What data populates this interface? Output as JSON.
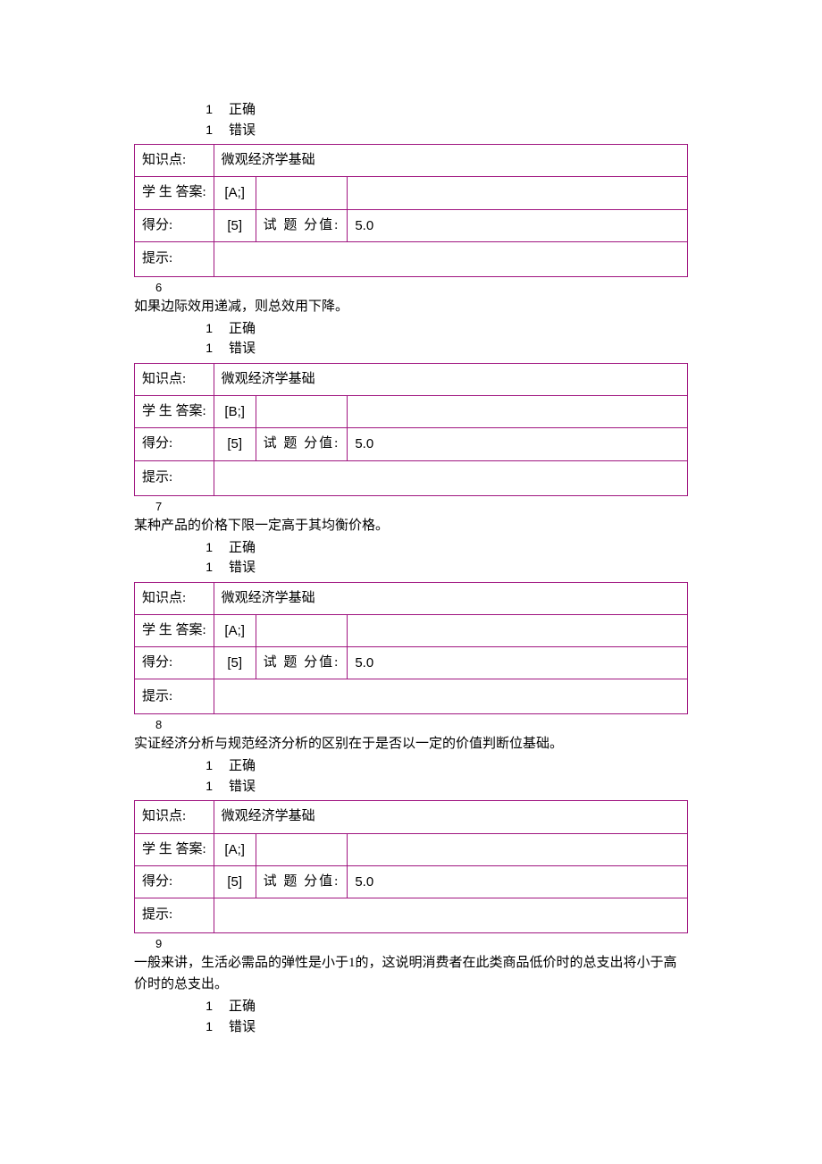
{
  "labels": {
    "knowledge_point": "知识点:",
    "student_answer": "学 生 答案:",
    "score": "得分:",
    "question_value": "试 题 分值:",
    "hint": "提示:",
    "opt_num": "1",
    "opt_correct": "正确",
    "opt_wrong": "错误"
  },
  "questions": [
    {
      "num": "",
      "text": "",
      "kp": "微观经济学基础",
      "answer": "[A;]",
      "score": "[5]",
      "value": "5.0",
      "show_text": false
    },
    {
      "num": "6",
      "text": "如果边际效用递减，则总效用下降。",
      "kp": "微观经济学基础",
      "answer": "[B;]",
      "score": "[5]",
      "value": "5.0",
      "show_text": true
    },
    {
      "num": "7",
      "text": "某种产品的价格下限一定高于其均衡价格。",
      "kp": "微观经济学基础",
      "answer": "[A;]",
      "score": "[5]",
      "value": "5.0",
      "show_text": true
    },
    {
      "num": "8",
      "text": "实证经济分析与规范经济分析的区别在于是否以一定的价值判断位基础。",
      "kp": "微观经济学基础",
      "answer": "[A;]",
      "score": "[5]",
      "value": "5.0",
      "show_text": true
    },
    {
      "num": "9",
      "text": "一般来讲，生活必需品的弹性是小于1的，这说明消费者在此类商品低价时的总支出将小于高价时的总支出。",
      "kp": "",
      "answer": "",
      "score": "",
      "value": "",
      "show_text": true,
      "table": false
    }
  ],
  "colors": {
    "table_border": "#a01580",
    "text": "#000000",
    "bg": "#ffffff"
  }
}
